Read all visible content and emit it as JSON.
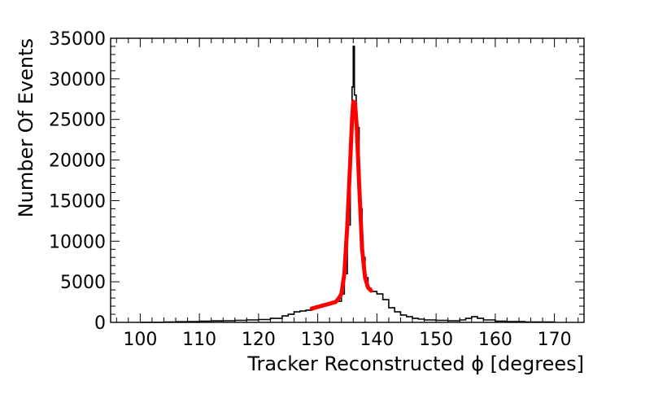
{
  "chart_data": {
    "type": "line",
    "title": "",
    "xlabel": "Tracker Reconstructed ϕ [degrees]",
    "ylabel": "Number Of Events",
    "xlim": [
      95,
      175
    ],
    "ylim": [
      0,
      35000
    ],
    "x_ticks": [
      100,
      110,
      120,
      130,
      140,
      150,
      160,
      170
    ],
    "x_tick_labels": [
      "100",
      "110",
      "120",
      "130",
      "140",
      "150",
      "160",
      "170"
    ],
    "y_ticks": [
      0,
      5000,
      10000,
      15000,
      20000,
      25000,
      30000,
      35000
    ],
    "y_tick_labels": [
      "0",
      "5000",
      "10000",
      "15000",
      "20000",
      "25000",
      "30000",
      "35000"
    ],
    "grid": false,
    "legend": "none",
    "series": [
      {
        "style": "histogram",
        "color": "#000000",
        "x": [
          100,
          104,
          106,
          108,
          110,
          112,
          114,
          116,
          118,
          120,
          122,
          124,
          125,
          126,
          127,
          128,
          129,
          130,
          131,
          132,
          133,
          134,
          134.5,
          135,
          135.5,
          135.8,
          136,
          136.2,
          136.5,
          137,
          137.5,
          138,
          138.5,
          139,
          140,
          141,
          142,
          143,
          144,
          145,
          146,
          147,
          148,
          150,
          152,
          154,
          155,
          156,
          157,
          158,
          160,
          162,
          165,
          170
        ],
        "y": [
          0,
          50,
          80,
          100,
          150,
          180,
          200,
          250,
          300,
          350,
          500,
          800,
          1000,
          1300,
          1400,
          1500,
          1800,
          2000,
          2200,
          2400,
          2600,
          3500,
          6000,
          12000,
          22000,
          29000,
          34000,
          28000,
          24000,
          14000,
          8000,
          5500,
          4200,
          3800,
          3500,
          2800,
          1800,
          1300,
          900,
          700,
          500,
          400,
          300,
          250,
          200,
          300,
          500,
          700,
          500,
          300,
          150,
          100,
          50,
          0
        ]
      },
      {
        "style": "fit",
        "color": "#ff0000",
        "x": [
          129,
          130,
          131,
          132,
          133,
          133.5,
          134,
          134.5,
          135,
          135.5,
          135.8,
          136,
          136.3,
          136.6,
          137,
          137.5,
          138,
          138.5,
          139
        ],
        "y": [
          1700,
          1900,
          2100,
          2300,
          2500,
          2900,
          3500,
          6000,
          12000,
          20000,
          25000,
          27200,
          27000,
          24000,
          17000,
          9000,
          5500,
          4300,
          3900
        ]
      }
    ]
  }
}
